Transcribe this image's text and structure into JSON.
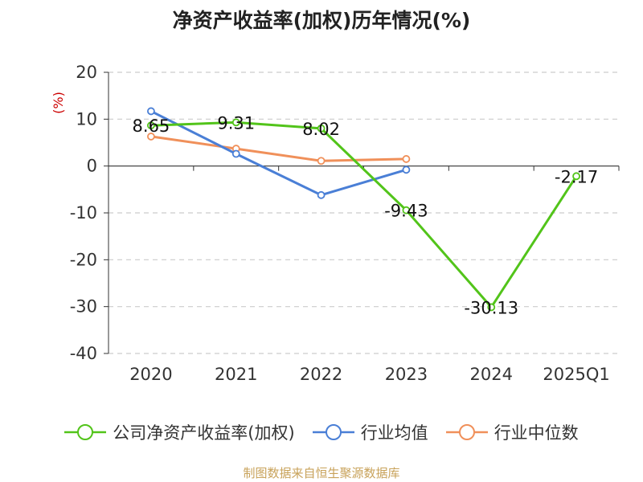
{
  "source_text": "制图数据来自恒生聚源数据库",
  "chart_data": {
    "type": "line",
    "title": "净资产收益率(加权)历年情况(%)",
    "unit_label": "(%)",
    "categories": [
      "2020",
      "2021",
      "2022",
      "2023",
      "2024",
      "2025Q1"
    ],
    "ylim": [
      -40,
      20
    ],
    "yticks": [
      20,
      10,
      0,
      -10,
      -20,
      -30,
      -40
    ],
    "grid": true,
    "legend_position": "bottom",
    "series": [
      {
        "name": "公司净资产收益率(加权)",
        "color": "#52c41a",
        "values": [
          8.65,
          9.31,
          8.02,
          -9.43,
          -30.13,
          -2.17
        ],
        "labels": [
          "8.65",
          "9.31",
          "8.02",
          "-9.43",
          "-30.13",
          "-2.17"
        ]
      },
      {
        "name": "行业均值",
        "color": "#4a7fd6",
        "values": [
          11.7,
          2.6,
          -6.2,
          -0.8,
          null,
          null
        ]
      },
      {
        "name": "行业中位数",
        "color": "#f0905a",
        "values": [
          6.3,
          3.7,
          1.1,
          1.5,
          null,
          null
        ]
      }
    ]
  }
}
